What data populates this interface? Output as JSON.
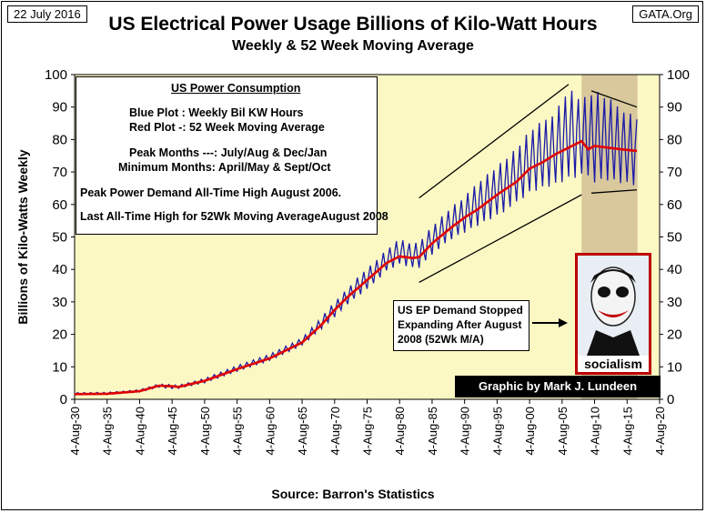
{
  "header": {
    "date": "22 July 2016",
    "source_tag": "GATA.Org",
    "title": "US Electrical Power Usage Billions of Kilo-Watt Hours",
    "subtitle": "Weekly & 52 Week Moving Average"
  },
  "info_box": {
    "heading": "US Power Consumption",
    "line1": "Blue Plot  : Weekly Bil KW Hours",
    "line2": "Red Plot -: 52 Week Moving Average",
    "line3": "Peak Months ---: July/Aug & Dec/Jan",
    "line4": "Minimum Months: April/May & Sept/Oct",
    "line5": "Peak Power Demand All-Time High August 2006.",
    "line6": "Last All-Time High for 52Wk Moving AverageAugust 2008"
  },
  "annotation": {
    "note": "US EP Demand Stopped Expanding After August 2008 (52Wk M/A)",
    "credit": "Graphic by Mark J. Lundeen",
    "poster_label": "socialism"
  },
  "colors": {
    "plot_bg": "#fcf8c4",
    "shaded_region": "#d8c89c",
    "weekly": "#1a1aa8",
    "moving_avg": "#e00000"
  },
  "chart_data": {
    "type": "line",
    "title": "US Electrical Power Usage Billions of Kilo-Watt Hours",
    "subtitle": "Weekly & 52 Week Moving Average",
    "xlabel": "Source: Barron's Statistics",
    "ylabel": "Billions of Kilo-Watts Weekly",
    "ylim": [
      0,
      100
    ],
    "yticks": [
      0,
      10,
      20,
      30,
      40,
      50,
      60,
      70,
      80,
      90,
      100
    ],
    "xticks": [
      "4-Aug-30",
      "4-Aug-35",
      "4-Aug-40",
      "4-Aug-45",
      "4-Aug-50",
      "4-Aug-55",
      "4-Aug-60",
      "4-Aug-65",
      "4-Aug-70",
      "4-Aug-75",
      "4-Aug-80",
      "4-Aug-85",
      "4-Aug-90",
      "4-Aug-95",
      "4-Aug-00",
      "4-Aug-05",
      "4-Aug-10",
      "4-Aug-15",
      "4-Aug-20"
    ],
    "xlim_years": [
      1930,
      2020
    ],
    "grid": false,
    "shaded_region_years": [
      2008,
      2016.6
    ],
    "series": [
      {
        "name": "Weekly Bil KW Hours",
        "x_years": [
          1930,
          1935,
          1940,
          1943,
          1945,
          1946,
          1950,
          1955,
          1960,
          1965,
          1968,
          1970,
          1972,
          1974,
          1976,
          1978,
          1980,
          1982,
          1983,
          1985,
          1988,
          1990,
          1992,
          1995,
          1998,
          2000,
          2002,
          2004,
          2006,
          2008,
          2010,
          2012,
          2014,
          2016.5
        ],
        "low": [
          1.3,
          1.4,
          2.2,
          3.6,
          3.2,
          3.3,
          5.0,
          8.5,
          11.8,
          16.5,
          21.5,
          25.0,
          29.0,
          32.0,
          35.0,
          39.0,
          41.0,
          40.0,
          40.0,
          44.0,
          48.5,
          50.5,
          52.5,
          55.5,
          59.0,
          62.0,
          63.5,
          64.5,
          66.0,
          67.5,
          64.5,
          65.5,
          65.0,
          64.5
        ],
        "high": [
          2.1,
          2.2,
          3.0,
          4.8,
          4.6,
          4.4,
          6.5,
          10.5,
          14.0,
          19.0,
          25.5,
          30.5,
          34.5,
          39.0,
          42.5,
          46.5,
          50.0,
          48.5,
          49.0,
          54.0,
          60.0,
          63.0,
          68.0,
          73.0,
          78.5,
          84.0,
          87.0,
          90.5,
          98.0,
          94.0,
          97.0,
          94.5,
          91.5,
          88.5
        ]
      },
      {
        "name": "52 Week Moving Average",
        "x_years": [
          1930,
          1935,
          1940,
          1943,
          1945,
          1946,
          1950,
          1955,
          1960,
          1965,
          1968,
          1970,
          1972,
          1974,
          1976,
          1978,
          1980,
          1982,
          1983,
          1985,
          1988,
          1990,
          1992,
          1995,
          1998,
          2000,
          2002,
          2004,
          2006,
          2008,
          2009,
          2010,
          2012,
          2014,
          2016.5
        ],
        "values": [
          1.6,
          1.7,
          2.5,
          4.2,
          4.0,
          3.8,
          5.7,
          9.3,
          12.6,
          17.5,
          23.0,
          27.5,
          31.5,
          35.0,
          38.5,
          42.0,
          44.0,
          43.5,
          43.8,
          48.0,
          53.0,
          56.0,
          58.5,
          63.0,
          67.0,
          71.0,
          73.0,
          75.5,
          77.5,
          79.5,
          77.0,
          78.0,
          77.5,
          77.0,
          76.5
        ]
      }
    ],
    "annotation_lines": [
      {
        "from": [
          1983,
          62
        ],
        "to": [
          2006,
          97
        ]
      },
      {
        "from": [
          1983,
          36
        ],
        "to": [
          2008,
          63
        ]
      },
      {
        "from": [
          2009.5,
          95
        ],
        "to": [
          2016.5,
          90
        ]
      },
      {
        "from": [
          2009.5,
          63.5
        ],
        "to": [
          2016.5,
          64.5
        ]
      }
    ]
  }
}
